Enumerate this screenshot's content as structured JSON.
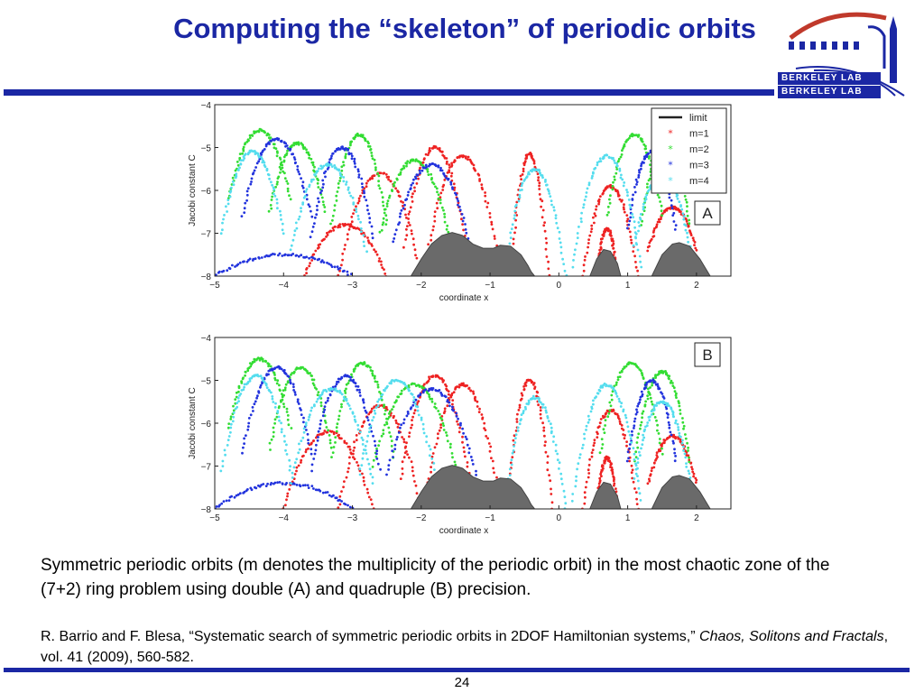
{
  "slide": {
    "title": "Computing the “skeleton” of periodic orbits",
    "logo_line1": "BERKELEY LAB",
    "logo_line2": "BERKELEY LAB",
    "caption": "Symmetric periodic orbits (m denotes the multiplicity of the periodic orbit) in the most chaotic zone of the (7+2) ring problem using double (A) and quadruple (B) precision.",
    "reference_authors": "R. Barrio and F. Blesa, “Systematic search of symmetric periodic orbits in 2DOF Hamiltonian systems,”",
    "reference_journal": "Chaos, Solitons and Fractals",
    "reference_rest": ", vol. 41 (2009), 560-582.",
    "page_number": "24"
  },
  "colors": {
    "accent": "#1b27a4",
    "limit_fill": "#6a6a6a",
    "m1": "#ee2222",
    "m2": "#33dd33",
    "m3": "#2233dd",
    "m4": "#55ddee"
  },
  "chart_data": [
    {
      "type": "scatter",
      "panel_label": "A",
      "xlabel": "coordinate x",
      "ylabel": "Jacobi constant C",
      "xlim": [
        -5,
        2.5
      ],
      "ylim": [
        -8,
        -4
      ],
      "xticks": [
        -5,
        -4,
        -3,
        -2,
        -1,
        0,
        1,
        2
      ],
      "xtick_labels": [
        "−5",
        "−4",
        "−3",
        "−2",
        "−1",
        "0",
        "1",
        "2"
      ],
      "yticks": [
        -4,
        -5,
        -6,
        -7,
        -8
      ],
      "ytick_labels": [
        "−4",
        "−5",
        "−6",
        "−7",
        "−8"
      ],
      "legend": [
        "limit",
        "m=1",
        "m=2",
        "m=3",
        "m=4"
      ],
      "legend_position": "top-right",
      "limit_curve": {
        "x": [
          -2.15,
          -2.0,
          -1.85,
          -1.7,
          -1.55,
          -1.4,
          -1.25,
          -1.1,
          -0.95,
          -0.85,
          -0.7,
          -0.55,
          -0.45,
          -0.4,
          -0.35,
          0.45,
          0.55,
          0.65,
          0.75,
          0.85,
          0.9,
          1.35,
          1.5,
          1.65,
          1.75,
          1.9,
          2.05,
          2.2
        ],
        "y": [
          -8.0,
          -7.6,
          -7.25,
          -7.05,
          -6.98,
          -7.05,
          -7.25,
          -7.35,
          -7.35,
          -7.28,
          -7.3,
          -7.5,
          -7.75,
          -7.9,
          -8.0,
          -8.0,
          -7.6,
          -7.38,
          -7.42,
          -7.7,
          -8.0,
          -8.0,
          -7.5,
          -7.25,
          -7.22,
          -7.3,
          -7.6,
          -8.0
        ]
      },
      "series": [
        {
          "name": "m=1",
          "families": [
            {
              "x0": -3.2,
              "x1": -2.0,
              "ytop": -5.6,
              "ybase": -8.0
            },
            {
              "x0": -2.25,
              "x1": -1.35,
              "ytop": -5.0,
              "ybase": -7.3
            },
            {
              "x0": -1.9,
              "x1": -0.9,
              "ytop": -5.2,
              "ybase": -7.4
            },
            {
              "x0": -0.7,
              "x1": -0.15,
              "ytop": -5.15,
              "ybase": -8.0
            },
            {
              "x0": 0.35,
              "x1": 1.15,
              "ytop": -5.9,
              "ybase": -8.0
            },
            {
              "x0": 0.55,
              "x1": 0.85,
              "ytop": -6.9,
              "ybase": -8.0
            },
            {
              "x0": 1.3,
              "x1": 2.0,
              "ytop": -6.4,
              "ybase": -7.4
            },
            {
              "x0": -3.7,
              "x1": -2.5,
              "ytop": -6.8,
              "ybase": -8.0
            }
          ]
        },
        {
          "name": "m=2",
          "families": [
            {
              "x0": -4.8,
              "x1": -3.9,
              "ytop": -4.6,
              "ybase": -6.2
            },
            {
              "x0": -4.2,
              "x1": -3.4,
              "ytop": -4.9,
              "ybase": -6.5
            },
            {
              "x0": -3.3,
              "x1": -2.5,
              "ytop": -4.7,
              "ybase": -6.8
            },
            {
              "x0": -2.6,
              "x1": -1.6,
              "ytop": -5.3,
              "ybase": -7.0
            },
            {
              "x0": 0.7,
              "x1": 1.5,
              "ytop": -4.7,
              "ybase": -6.6
            },
            {
              "x0": 1.2,
              "x1": 1.9,
              "ytop": -4.9,
              "ybase": -6.8
            }
          ]
        },
        {
          "name": "m=3",
          "families": [
            {
              "x0": -4.6,
              "x1": -3.6,
              "ytop": -4.8,
              "ybase": -6.6
            },
            {
              "x0": -3.6,
              "x1": -2.7,
              "ytop": -5.0,
              "ybase": -7.1
            },
            {
              "x0": -2.4,
              "x1": -1.3,
              "ytop": -5.4,
              "ybase": -7.2
            },
            {
              "x0": 1.0,
              "x1": 1.7,
              "ytop": -5.1,
              "ybase": -6.9
            },
            {
              "x0": -5.0,
              "x1": -3.0,
              "ytop": -7.5,
              "ybase": -8.0
            }
          ]
        },
        {
          "name": "m=4",
          "families": [
            {
              "x0": -4.9,
              "x1": -4.0,
              "ytop": -5.1,
              "ybase": -7.0
            },
            {
              "x0": -3.9,
              "x1": -2.8,
              "ytop": -5.4,
              "ybase": -7.4
            },
            {
              "x0": -0.8,
              "x1": 0.1,
              "ytop": -5.5,
              "ybase": -8.0
            },
            {
              "x0": 0.2,
              "x1": 1.2,
              "ytop": -5.2,
              "ybase": -7.8
            },
            {
              "x0": 1.1,
              "x1": 1.9,
              "ytop": -5.6,
              "ybase": -7.3
            }
          ]
        }
      ]
    },
    {
      "type": "scatter",
      "panel_label": "B",
      "xlabel": "coordinate x",
      "ylabel": "Jacobi constant C",
      "xlim": [
        -5,
        2.5
      ],
      "ylim": [
        -8,
        -4
      ],
      "xticks": [
        -5,
        -4,
        -3,
        -2,
        -1,
        0,
        1,
        2
      ],
      "xtick_labels": [
        "−5",
        "−4",
        "−3",
        "−2",
        "−1",
        "0",
        "1",
        "2"
      ],
      "yticks": [
        -4,
        -5,
        -6,
        -7,
        -8
      ],
      "ytick_labels": [
        "−4",
        "−5",
        "−6",
        "−7",
        "−8"
      ],
      "legend": [],
      "limit_curve": {
        "x": [
          -2.15,
          -2.0,
          -1.85,
          -1.7,
          -1.55,
          -1.4,
          -1.25,
          -1.1,
          -0.95,
          -0.85,
          -0.7,
          -0.55,
          -0.45,
          -0.4,
          -0.35,
          0.45,
          0.55,
          0.65,
          0.75,
          0.85,
          0.9,
          1.35,
          1.5,
          1.65,
          1.75,
          1.9,
          2.05,
          2.2
        ],
        "y": [
          -8.0,
          -7.6,
          -7.25,
          -7.05,
          -6.98,
          -7.05,
          -7.25,
          -7.35,
          -7.35,
          -7.28,
          -7.3,
          -7.5,
          -7.75,
          -7.9,
          -8.0,
          -8.0,
          -7.6,
          -7.38,
          -7.42,
          -7.7,
          -8.0,
          -8.0,
          -7.5,
          -7.25,
          -7.22,
          -7.3,
          -7.6,
          -8.0
        ]
      },
      "series": [
        {
          "name": "m=1",
          "families": [
            {
              "x0": -3.2,
              "x1": -2.0,
              "ytop": -5.6,
              "ybase": -8.0
            },
            {
              "x0": -2.3,
              "x1": -1.3,
              "ytop": -4.9,
              "ybase": -7.3
            },
            {
              "x0": -1.9,
              "x1": -0.9,
              "ytop": -5.1,
              "ybase": -7.4
            },
            {
              "x0": -0.75,
              "x1": -0.1,
              "ytop": -5.0,
              "ybase": -8.0
            },
            {
              "x0": 0.35,
              "x1": 1.15,
              "ytop": -5.7,
              "ybase": -8.0
            },
            {
              "x0": 0.55,
              "x1": 0.85,
              "ytop": -6.8,
              "ybase": -8.0
            },
            {
              "x0": 1.3,
              "x1": 2.0,
              "ytop": -6.3,
              "ybase": -7.4
            },
            {
              "x0": -4.0,
              "x1": -2.7,
              "ytop": -6.2,
              "ybase": -8.0
            }
          ]
        },
        {
          "name": "m=2",
          "families": [
            {
              "x0": -4.8,
              "x1": -3.9,
              "ytop": -4.5,
              "ybase": -6.1
            },
            {
              "x0": -4.2,
              "x1": -3.3,
              "ytop": -4.7,
              "ybase": -6.6
            },
            {
              "x0": -3.3,
              "x1": -2.4,
              "ytop": -4.6,
              "ybase": -6.8
            },
            {
              "x0": -2.7,
              "x1": -1.5,
              "ytop": -5.1,
              "ybase": -7.0
            },
            {
              "x0": 0.6,
              "x1": 1.5,
              "ytop": -4.6,
              "ybase": -6.7
            },
            {
              "x0": 1.1,
              "x1": 1.9,
              "ytop": -4.8,
              "ybase": -6.9
            }
          ]
        },
        {
          "name": "m=3",
          "families": [
            {
              "x0": -4.6,
              "x1": -3.6,
              "ytop": -4.7,
              "ybase": -6.7
            },
            {
              "x0": -3.6,
              "x1": -2.6,
              "ytop": -4.9,
              "ybase": -7.1
            },
            {
              "x0": -2.5,
              "x1": -1.2,
              "ytop": -5.2,
              "ybase": -7.2
            },
            {
              "x0": 1.0,
              "x1": 1.7,
              "ytop": -5.0,
              "ybase": -6.9
            },
            {
              "x0": -5.0,
              "x1": -3.0,
              "ytop": -7.4,
              "ybase": -8.0
            }
          ]
        },
        {
          "name": "m=4",
          "families": [
            {
              "x0": -4.9,
              "x1": -3.9,
              "ytop": -4.9,
              "ybase": -7.1
            },
            {
              "x0": -3.9,
              "x1": -2.7,
              "ytop": -5.2,
              "ybase": -7.4
            },
            {
              "x0": -2.9,
              "x1": -1.8,
              "ytop": -5.0,
              "ybase": -7.2
            },
            {
              "x0": -0.8,
              "x1": 0.1,
              "ytop": -5.4,
              "ybase": -8.0
            },
            {
              "x0": 0.2,
              "x1": 1.2,
              "ytop": -5.1,
              "ybase": -7.8
            },
            {
              "x0": 1.1,
              "x1": 1.9,
              "ytop": -5.5,
              "ybase": -7.3
            }
          ]
        }
      ]
    }
  ]
}
